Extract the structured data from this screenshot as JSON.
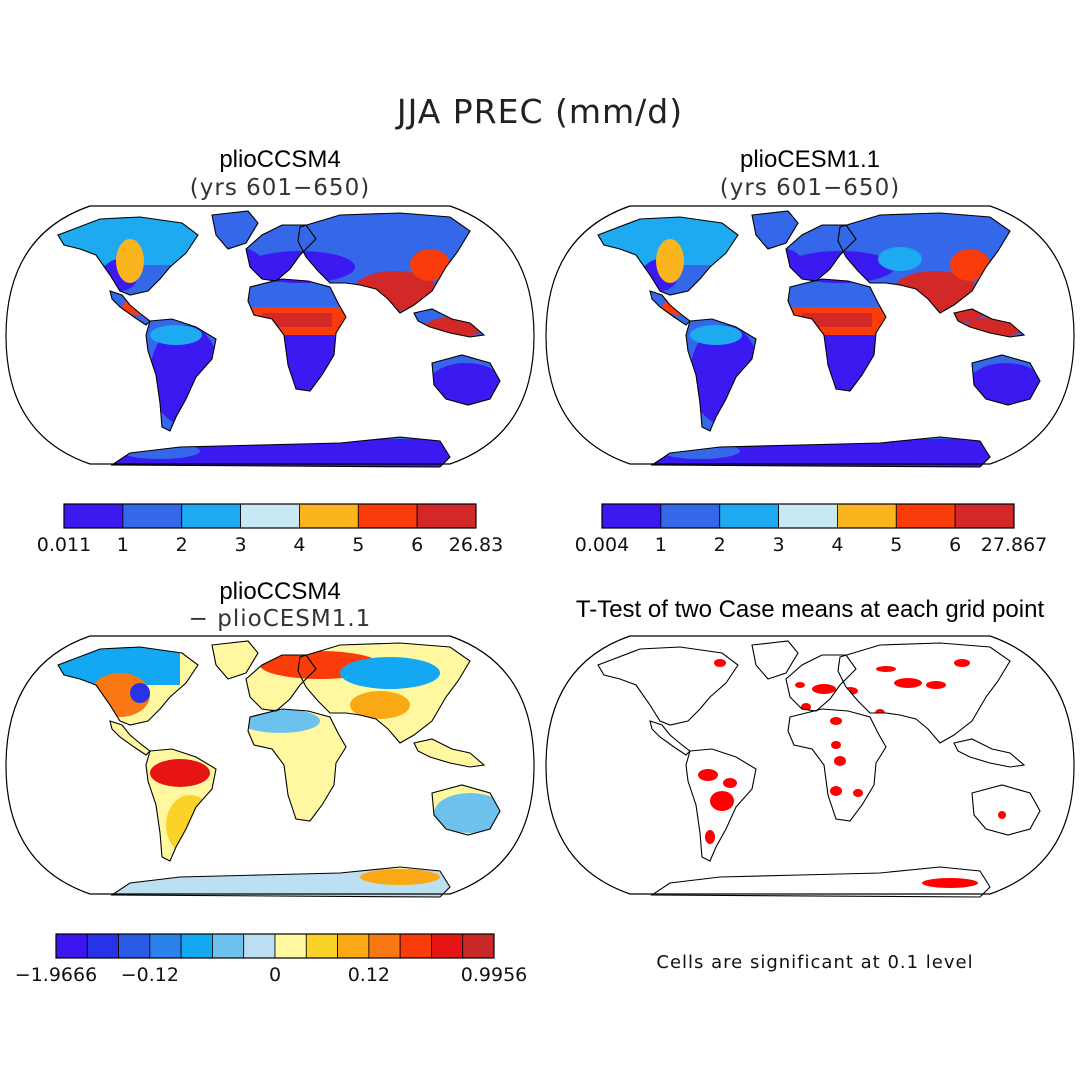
{
  "figure": {
    "title": "JJA PREC (mm/d)",
    "colors": {
      "land_outline": "#000000",
      "ocean": "#ffffff",
      "significant": "#ff0000"
    }
  },
  "panels": [
    {
      "title": "plioCCSM4",
      "subtitle": "(yrs 601−650)",
      "colorbar": {
        "colors": [
          "#3a1af0",
          "#3468e8",
          "#1eaaf0",
          "#c8e8f4",
          "#fab41e",
          "#fa3c0a",
          "#d22828"
        ],
        "labels": [
          "0.011",
          "1",
          "2",
          "3",
          "4",
          "5",
          "6",
          "26.83"
        ]
      }
    },
    {
      "title": "plioCESM1.1",
      "subtitle": "(yrs 601−650)",
      "colorbar": {
        "colors": [
          "#3a1af0",
          "#3468e8",
          "#1eaaf0",
          "#c8e8f4",
          "#fab41e",
          "#fa3c0a",
          "#d22828"
        ],
        "labels": [
          "0.004",
          "1",
          "2",
          "3",
          "4",
          "5",
          "6",
          "27.867"
        ]
      }
    },
    {
      "title": "plioCCSM4",
      "subtitle": "− plioCESM1.1",
      "colorbar": {
        "colors": [
          "#3c14f0",
          "#2832e6",
          "#2a5ae6",
          "#2a82ea",
          "#14a8f2",
          "#6cc2ec",
          "#bce0f2",
          "#fff8a0",
          "#fad228",
          "#faa814",
          "#fa7814",
          "#fa3c0a",
          "#e61414",
          "#c82828"
        ],
        "labels": [
          "−1.9666",
          "−0.12",
          "0",
          "0.12",
          "0.9956"
        ]
      }
    },
    {
      "title": "T-Test of two Case means at each grid point",
      "note": "Cells are significant at 0.1 level"
    }
  ]
}
